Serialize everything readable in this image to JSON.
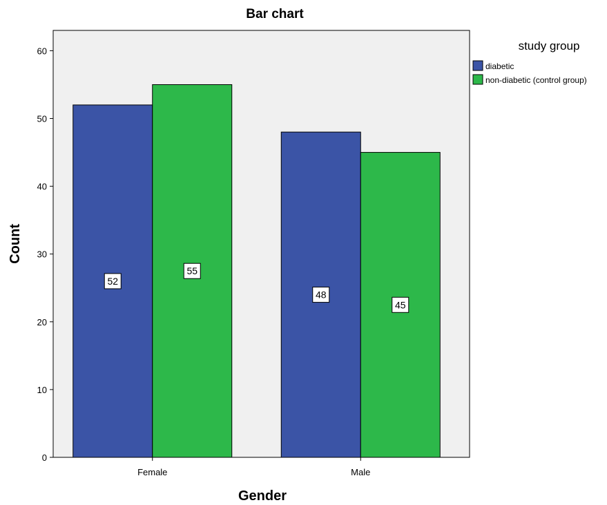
{
  "chart_data": {
    "type": "bar",
    "title": "Bar chart",
    "xlabel": "Gender",
    "ylabel": "Count",
    "categories": [
      "Female",
      "Male"
    ],
    "ylim": [
      0,
      63
    ],
    "yticks": [
      0,
      10,
      20,
      30,
      40,
      50,
      60
    ],
    "grid": false,
    "legend": {
      "title": "study group",
      "placement": "right"
    },
    "series": [
      {
        "name": "diabetic",
        "color": "#3b54a6",
        "values": [
          52,
          48
        ]
      },
      {
        "name": "non-diabetic (control group)",
        "color": "#2db84a",
        "values": [
          55,
          45
        ]
      }
    ],
    "plot_background": "#f0f0f0"
  }
}
